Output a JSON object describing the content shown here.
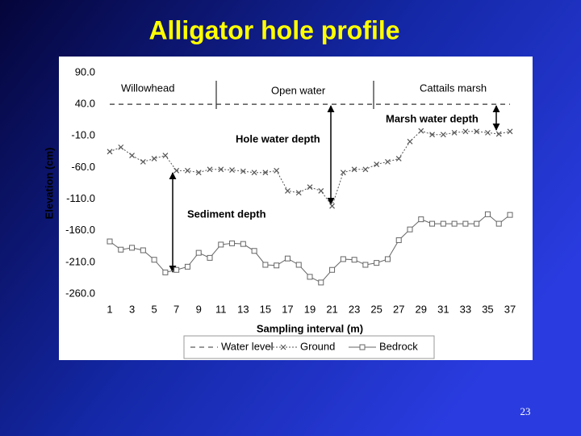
{
  "chart_data": {
    "type": "line",
    "title": "Alligator hole profile",
    "x_label": "Sampling interval (m)",
    "y_label": "Elevation (cm)",
    "x": [
      1,
      2,
      3,
      4,
      5,
      6,
      7,
      8,
      9,
      10,
      11,
      12,
      13,
      14,
      15,
      16,
      17,
      18,
      19,
      20,
      21,
      22,
      23,
      24,
      25,
      26,
      27,
      28,
      29,
      30,
      31,
      32,
      33,
      34,
      35,
      36,
      37
    ],
    "xlim": [
      1,
      37
    ],
    "xticks": [
      1,
      3,
      5,
      7,
      9,
      11,
      13,
      15,
      17,
      19,
      21,
      23,
      25,
      27,
      29,
      31,
      33,
      35,
      37
    ],
    "ylim": [
      -260,
      90
    ],
    "yticks": [
      {
        "value": 90,
        "label": "90.0"
      },
      {
        "value": 40,
        "label": "40.0"
      },
      {
        "value": -10,
        "label": "-10.0"
      },
      {
        "value": -60,
        "label": "-60.0"
      },
      {
        "value": -110,
        "label": "-110.0"
      },
      {
        "value": -160,
        "label": "-160.0"
      },
      {
        "value": -210,
        "label": "-210.0"
      },
      {
        "value": -260,
        "label": "-260.0"
      }
    ],
    "series": [
      {
        "name": "Water level",
        "color": "#333333",
        "style": "dashed",
        "marker": "none",
        "values": [
          40,
          40,
          40,
          40,
          40,
          40,
          40,
          40,
          40,
          40,
          40,
          40,
          40,
          40,
          40,
          40,
          40,
          40,
          40,
          40,
          40,
          40,
          40,
          40,
          40,
          40,
          40,
          40,
          40,
          40,
          40,
          40,
          40,
          40,
          40,
          40,
          40
        ]
      },
      {
        "name": "Ground",
        "color": "#555555",
        "style": "dotted",
        "marker": "x",
        "values": [
          -35,
          -28,
          -41,
          -51,
          -46,
          -41,
          -65,
          -65,
          -68,
          -63,
          -63,
          -64,
          -66,
          -68,
          -68,
          -65,
          -97,
          -100,
          -91,
          -97,
          -121,
          -68,
          -63,
          -63,
          -55,
          -51,
          -46,
          -19,
          -2,
          -8,
          -8,
          -5,
          -3,
          -3,
          -5,
          -7,
          -3
        ]
      },
      {
        "name": "Bedrock",
        "color": "#666666",
        "style": "solid",
        "marker": "square",
        "values": [
          -177,
          -190,
          -187,
          -191,
          -206,
          -226,
          -222,
          -217,
          -195,
          -203,
          -182,
          -180,
          -181,
          -192,
          -214,
          -215,
          -204,
          -214,
          -233,
          -242,
          -222,
          -205,
          -206,
          -214,
          -211,
          -205,
          -175,
          -158,
          -142,
          -149,
          -149,
          -149,
          -149,
          -149,
          -134,
          -149,
          -135
        ]
      }
    ],
    "annotations": [
      "Willowhead",
      "Open water",
      "Cattails marsh",
      "Marsh water depth",
      "Hole water depth",
      "Sediment depth"
    ]
  },
  "page_number": 23
}
